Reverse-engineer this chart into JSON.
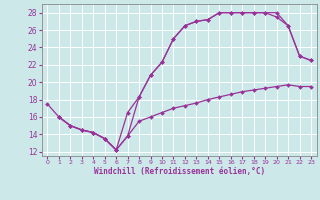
{
  "background_color": "#cce8e8",
  "grid_color": "#ffffff",
  "line_color": "#993399",
  "xlabel": "Windchill (Refroidissement éolien,°C)",
  "xlim": [
    -0.5,
    23.5
  ],
  "ylim": [
    11.5,
    29.0
  ],
  "xticks": [
    0,
    1,
    2,
    3,
    4,
    5,
    6,
    7,
    8,
    9,
    10,
    11,
    12,
    13,
    14,
    15,
    16,
    17,
    18,
    19,
    20,
    21,
    22,
    23
  ],
  "yticks": [
    12,
    14,
    16,
    18,
    20,
    22,
    24,
    26,
    28
  ],
  "line1_x": [
    0,
    1,
    2,
    3,
    4,
    5,
    6,
    7,
    8,
    9,
    10,
    11,
    12,
    13,
    14,
    15,
    16,
    17,
    18,
    19,
    20,
    21,
    22,
    23
  ],
  "line1_y": [
    17.5,
    16.0,
    15.0,
    14.5,
    14.2,
    13.5,
    12.2,
    16.5,
    18.3,
    20.8,
    22.3,
    25.0,
    26.5,
    27.0,
    27.2,
    28.0,
    28.0,
    28.0,
    28.0,
    28.0,
    28.0,
    26.5,
    23.0,
    22.5
  ],
  "line2_x": [
    1,
    2,
    3,
    4,
    5,
    6,
    7,
    8,
    9,
    10,
    11,
    12,
    13,
    14,
    15,
    16,
    17,
    18,
    19,
    20,
    21,
    22,
    23
  ],
  "line2_y": [
    16.0,
    15.0,
    14.5,
    14.2,
    13.5,
    12.2,
    13.8,
    18.3,
    20.8,
    22.3,
    25.0,
    26.5,
    27.0,
    27.2,
    28.0,
    28.0,
    28.0,
    28.0,
    28.0,
    27.5,
    26.5,
    23.0,
    22.5
  ],
  "line3_x": [
    1,
    2,
    3,
    4,
    5,
    6,
    7,
    8,
    9,
    10,
    11,
    12,
    13,
    14,
    15,
    16,
    17,
    18,
    19,
    20,
    21,
    22,
    23
  ],
  "line3_y": [
    16.0,
    15.0,
    14.5,
    14.2,
    13.5,
    12.2,
    13.8,
    15.5,
    16.0,
    16.5,
    17.0,
    17.3,
    17.6,
    18.0,
    18.3,
    18.6,
    18.9,
    19.1,
    19.3,
    19.5,
    19.7,
    19.5,
    19.5
  ]
}
